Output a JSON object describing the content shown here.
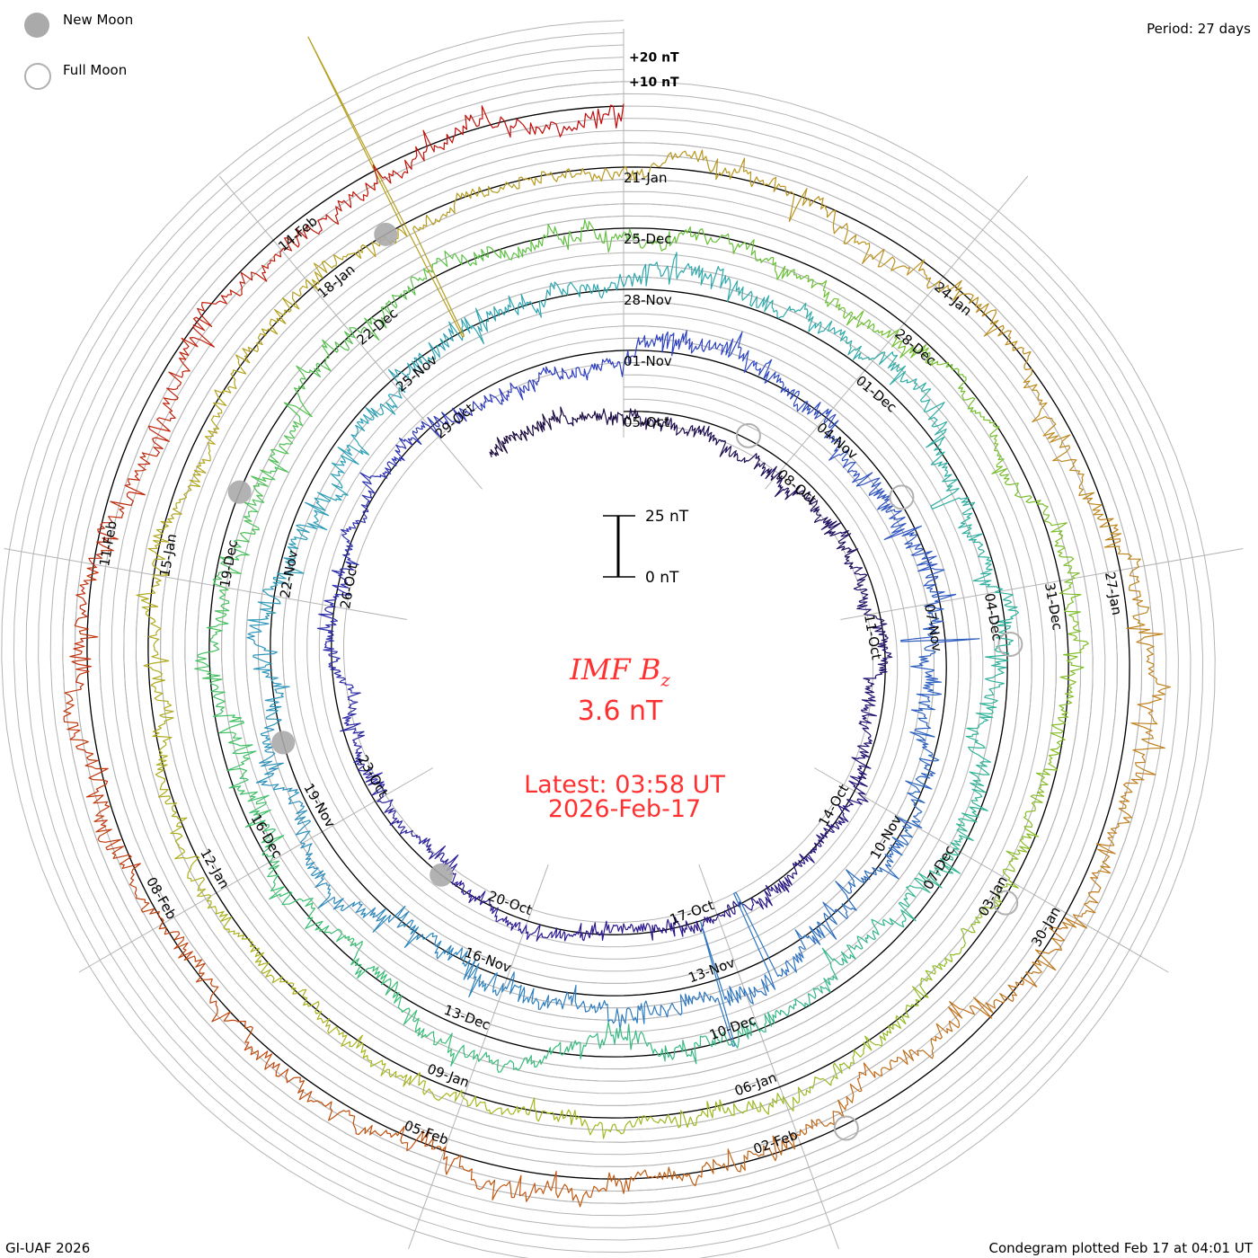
{
  "legend": {
    "new_moon": "New Moon",
    "full_moon": "Full Moon"
  },
  "period": "Period: 27 days",
  "footer_left": "GI-UAF 2026",
  "footer_right": "Condegram plotted Feb 17 at 04:01 UT",
  "chart_data": {
    "type": "line",
    "subtype": "condegram-spiral",
    "title_main": "IMF B",
    "title_sub": "z",
    "current_value": "3.6 nT",
    "latest_time": "Latest: 03:58 UT",
    "latest_date": "2026-Feb-17",
    "ylabel": "IMF Bz (nT)",
    "period_days": 27,
    "start_date": "2025-Oct-05",
    "end_date": "2026-Feb-17",
    "data_start_day": -2.5,
    "data_end_day": 135,
    "grid_step_nT": 5,
    "scale_bar": {
      "top_label": "25 nT",
      "bottom_label": "0 nT",
      "value_nT": 25
    },
    "ring_labels": [
      {
        "label": "+20 nT",
        "value": 20
      },
      {
        "label": "+10 nT",
        "value": 10
      }
    ],
    "date_labels": [
      {
        "day": 0,
        "label": "05-Oct"
      },
      {
        "day": 3,
        "label": "08-Oct"
      },
      {
        "day": 6,
        "label": "11-Oct"
      },
      {
        "day": 9,
        "label": "14-Oct"
      },
      {
        "day": 12,
        "label": "17-Oct"
      },
      {
        "day": 15,
        "label": "20-Oct"
      },
      {
        "day": 18,
        "label": "23-Oct"
      },
      {
        "day": 21,
        "label": "26-Oct"
      },
      {
        "day": 24,
        "label": "29-Oct"
      },
      {
        "day": 27,
        "label": "01-Nov"
      },
      {
        "day": 30,
        "label": "04-Nov"
      },
      {
        "day": 33,
        "label": "07-Nov"
      },
      {
        "day": 36,
        "label": "10-Nov"
      },
      {
        "day": 39,
        "label": "13-Nov"
      },
      {
        "day": 42,
        "label": "16-Nov"
      },
      {
        "day": 45,
        "label": "19-Nov"
      },
      {
        "day": 48,
        "label": "22-Nov"
      },
      {
        "day": 51,
        "label": "25-Nov"
      },
      {
        "day": 54,
        "label": "28-Nov"
      },
      {
        "day": 57,
        "label": "01-Dec"
      },
      {
        "day": 60,
        "label": "04-Dec"
      },
      {
        "day": 63,
        "label": "07-Dec"
      },
      {
        "day": 66,
        "label": "10-Dec"
      },
      {
        "day": 69,
        "label": "13-Dec"
      },
      {
        "day": 72,
        "label": "16-Dec"
      },
      {
        "day": 75,
        "label": "19-Dec"
      },
      {
        "day": 78,
        "label": "22-Dec"
      },
      {
        "day": 81,
        "label": "25-Dec"
      },
      {
        "day": 84,
        "label": "28-Dec"
      },
      {
        "day": 87,
        "label": "31-Dec"
      },
      {
        "day": 90,
        "label": "03-Jan"
      },
      {
        "day": 93,
        "label": "06-Jan"
      },
      {
        "day": 96,
        "label": "09-Jan"
      },
      {
        "day": 99,
        "label": "12-Jan"
      },
      {
        "day": 102,
        "label": "15-Jan"
      },
      {
        "day": 105,
        "label": "18-Jan"
      },
      {
        "day": 108,
        "label": "21-Jan"
      },
      {
        "day": 111,
        "label": "24-Jan"
      },
      {
        "day": 114,
        "label": "27-Jan"
      },
      {
        "day": 117,
        "label": "30-Jan"
      },
      {
        "day": 120,
        "label": "02-Feb"
      },
      {
        "day": 123,
        "label": "05-Feb"
      },
      {
        "day": 126,
        "label": "08-Feb"
      },
      {
        "day": 129,
        "label": "11-Feb"
      },
      {
        "day": 132,
        "label": "14-Feb"
      }
    ],
    "moons": {
      "new": [
        16.5,
        46.2,
        76.0,
        105.8
      ],
      "full": [
        2.2,
        31.5,
        60.6,
        90.2,
        119.6
      ]
    },
    "activity_nT": [
      {
        "from": -2.5,
        "to": 27,
        "amp": 4
      },
      {
        "from": 27,
        "to": 54,
        "amp": 6
      },
      {
        "from": 54,
        "to": 81,
        "amp": 6
      },
      {
        "from": 81,
        "to": 108,
        "amp": 4.5
      },
      {
        "from": 108,
        "to": 135,
        "amp": 6
      }
    ],
    "events": [
      {
        "day": 106.0,
        "min": -52,
        "max": 86
      },
      {
        "day": 38.6,
        "min": -30,
        "max": 22
      },
      {
        "day": 39.3,
        "min": -25,
        "max": 28
      },
      {
        "day": 33.5,
        "min": -18,
        "max": 14
      },
      {
        "day": 58.8,
        "min": -15,
        "max": 18
      }
    ],
    "color_stops": [
      [
        -2.5,
        "#1a0a3a"
      ],
      [
        14,
        "#2a1890"
      ],
      [
        27,
        "#2f3fc0"
      ],
      [
        40,
        "#2e78c0"
      ],
      [
        50,
        "#2ea0b8"
      ],
      [
        60,
        "#30b0a0"
      ],
      [
        72,
        "#3cc070"
      ],
      [
        84,
        "#70c030"
      ],
      [
        96,
        "#a8b820"
      ],
      [
        108,
        "#b89a20"
      ],
      [
        116,
        "#c08020"
      ],
      [
        124,
        "#c05010"
      ],
      [
        135,
        "#c00808"
      ]
    ]
  }
}
